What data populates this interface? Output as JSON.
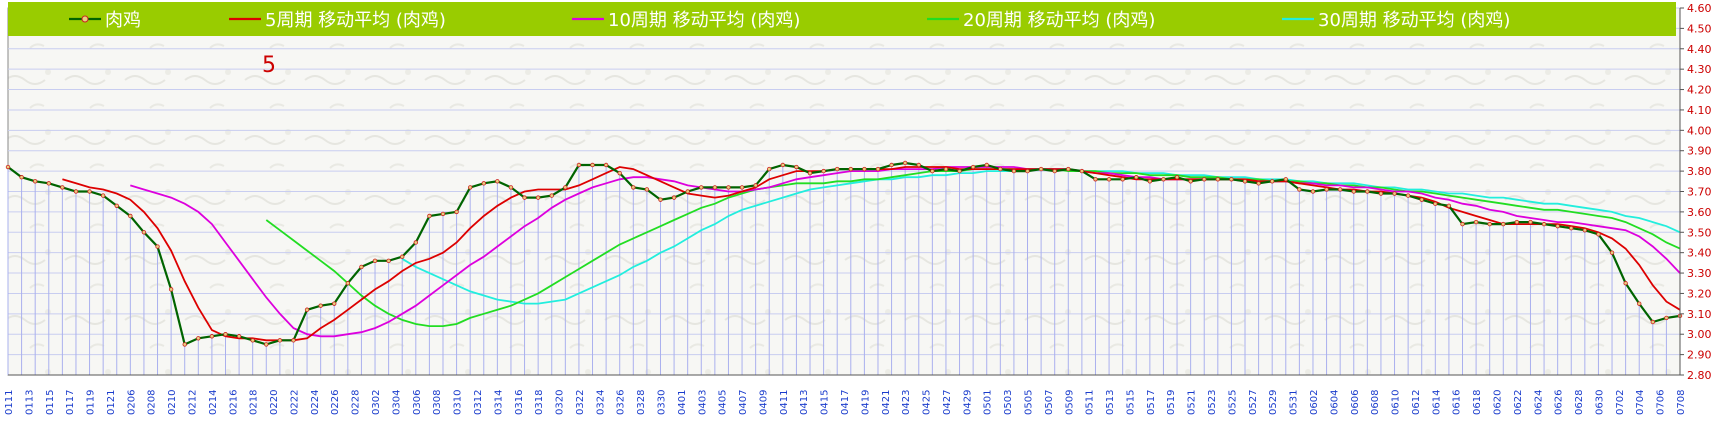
{
  "chart_data": {
    "type": "line",
    "title": "",
    "annotation": "5",
    "xlabel": "",
    "ylabel": "",
    "ylim": [
      2.8,
      4.6
    ],
    "yticks": [
      "2.80",
      "2.90",
      "3.00",
      "3.10",
      "3.20",
      "3.30",
      "3.40",
      "3.50",
      "3.60",
      "3.70",
      "3.80",
      "3.90",
      "4.00",
      "4.10",
      "4.20",
      "4.30",
      "4.40",
      "4.50",
      "4.60"
    ],
    "x_labels": [
      "0111",
      "0113",
      "0115",
      "0117",
      "0119",
      "0121",
      "0206",
      "0208",
      "0210",
      "0212",
      "0214",
      "0216",
      "0218",
      "0220",
      "0222",
      "0224",
      "0226",
      "0228",
      "0302",
      "0304",
      "0306",
      "0308",
      "0310",
      "0312",
      "0314",
      "0316",
      "0318",
      "0320",
      "0322",
      "0324",
      "0326",
      "0328",
      "0330",
      "0401",
      "0403",
      "0405",
      "0407",
      "0409",
      "0411",
      "0413",
      "0415",
      "0417",
      "0419",
      "0421",
      "0423",
      "0425",
      "0427",
      "0429",
      "0501",
      "0503",
      "0505",
      "0507",
      "0509",
      "0511",
      "0513",
      "0515",
      "0517",
      "0519",
      "0521",
      "0523",
      "0525",
      "0527",
      "0529",
      "0531",
      "0602",
      "0604",
      "0606",
      "0608",
      "0610",
      "0612",
      "0614",
      "0616",
      "0618",
      "0620",
      "0622",
      "0624",
      "0626",
      "0628",
      "0630",
      "0702",
      "0704",
      "0706",
      "0708"
    ],
    "legend": [
      {
        "name": "肉鸡",
        "color": "#006400"
      },
      {
        "name": "5周期 移动平均 (肉鸡)",
        "color": "#dd0000"
      },
      {
        "name": "10周期 移动平均 (肉鸡)",
        "color": "#dd00dd"
      },
      {
        "name": "20周期 移动平均 (肉鸡)",
        "color": "#22dd22"
      },
      {
        "name": "30周期 移动平均 (肉鸡)",
        "color": "#22eedd"
      }
    ],
    "series": [
      {
        "name": "肉鸡",
        "values": [
          3.82,
          3.77,
          3.75,
          3.74,
          3.72,
          3.7,
          3.7,
          3.68,
          3.63,
          3.58,
          3.5,
          3.43,
          3.22,
          2.95,
          2.98,
          2.99,
          3.0,
          2.99,
          2.97,
          2.95,
          2.97,
          2.97,
          3.12,
          3.14,
          3.15,
          3.25,
          3.33,
          3.36,
          3.36,
          3.38,
          3.45,
          3.58,
          3.59,
          3.6,
          3.72,
          3.74,
          3.75,
          3.72,
          3.67,
          3.67,
          3.68,
          3.72,
          3.83,
          3.83,
          3.83,
          3.79,
          3.72,
          3.71,
          3.66,
          3.67,
          3.7,
          3.72,
          3.72,
          3.72,
          3.72,
          3.73,
          3.81,
          3.83,
          3.82,
          3.79,
          3.8,
          3.81,
          3.81,
          3.81,
          3.81,
          3.83,
          3.84,
          3.83,
          3.8,
          3.81,
          3.8,
          3.82,
          3.83,
          3.81,
          3.8,
          3.8,
          3.81,
          3.8,
          3.81,
          3.8,
          3.76,
          3.76,
          3.76,
          3.77,
          3.75,
          3.76,
          3.77,
          3.75,
          3.76,
          3.76,
          3.76,
          3.75,
          3.74,
          3.75,
          3.76,
          3.71,
          3.7,
          3.71,
          3.71,
          3.7,
          3.7,
          3.69,
          3.69,
          3.68,
          3.66,
          3.64,
          3.63,
          3.54,
          3.55,
          3.54,
          3.54,
          3.55,
          3.55,
          3.54,
          3.53,
          3.52,
          3.51,
          3.49,
          3.4,
          3.25,
          3.15,
          3.06,
          3.08,
          3.09
        ]
      },
      {
        "name": "5周期 移动平均 (肉鸡)",
        "values": [
          null,
          null,
          null,
          null,
          3.76,
          3.74,
          3.72,
          3.71,
          3.69,
          3.66,
          3.6,
          3.52,
          3.41,
          3.26,
          3.13,
          3.02,
          2.99,
          2.98,
          2.98,
          2.97,
          2.97,
          2.97,
          2.98,
          3.03,
          3.07,
          3.12,
          3.17,
          3.22,
          3.26,
          3.31,
          3.35,
          3.37,
          3.4,
          3.45,
          3.52,
          3.58,
          3.63,
          3.67,
          3.7,
          3.71,
          3.71,
          3.71,
          3.73,
          3.76,
          3.79,
          3.82,
          3.81,
          3.78,
          3.75,
          3.72,
          3.69,
          3.68,
          3.67,
          3.68,
          3.7,
          3.72,
          3.76,
          3.78,
          3.8,
          3.8,
          3.8,
          3.81,
          3.81,
          3.81,
          3.81,
          3.81,
          3.82,
          3.82,
          3.82,
          3.82,
          3.81,
          3.81,
          3.81,
          3.81,
          3.81,
          3.81,
          3.81,
          3.81,
          3.81,
          3.8,
          3.79,
          3.78,
          3.77,
          3.76,
          3.76,
          3.76,
          3.76,
          3.76,
          3.76,
          3.76,
          3.76,
          3.76,
          3.75,
          3.75,
          3.75,
          3.74,
          3.73,
          3.72,
          3.71,
          3.71,
          3.7,
          3.7,
          3.69,
          3.68,
          3.67,
          3.65,
          3.62,
          3.6,
          3.58,
          3.56,
          3.54,
          3.54,
          3.54,
          3.54,
          3.54,
          3.53,
          3.52,
          3.5,
          3.47,
          3.42,
          3.34,
          3.24,
          3.16,
          3.12
        ]
      },
      {
        "name": "10周期 移动平均 (肉鸡)",
        "values": [
          null,
          null,
          null,
          null,
          null,
          null,
          null,
          null,
          null,
          3.73,
          3.71,
          3.69,
          3.67,
          3.64,
          3.6,
          3.54,
          3.45,
          3.36,
          3.27,
          3.18,
          3.1,
          3.03,
          3.0,
          2.99,
          2.99,
          3.0,
          3.01,
          3.03,
          3.06,
          3.1,
          3.14,
          3.19,
          3.24,
          3.29,
          3.34,
          3.38,
          3.43,
          3.48,
          3.53,
          3.57,
          3.62,
          3.66,
          3.69,
          3.72,
          3.74,
          3.76,
          3.77,
          3.77,
          3.76,
          3.75,
          3.73,
          3.72,
          3.71,
          3.7,
          3.7,
          3.71,
          3.72,
          3.74,
          3.76,
          3.77,
          3.78,
          3.79,
          3.8,
          3.8,
          3.8,
          3.81,
          3.81,
          3.81,
          3.81,
          3.82,
          3.82,
          3.82,
          3.82,
          3.82,
          3.82,
          3.81,
          3.81,
          3.81,
          3.81,
          3.8,
          3.79,
          3.79,
          3.78,
          3.77,
          3.77,
          3.76,
          3.76,
          3.76,
          3.76,
          3.76,
          3.76,
          3.75,
          3.75,
          3.75,
          3.75,
          3.74,
          3.74,
          3.73,
          3.73,
          3.72,
          3.72,
          3.71,
          3.7,
          3.7,
          3.69,
          3.67,
          3.66,
          3.64,
          3.63,
          3.61,
          3.6,
          3.58,
          3.57,
          3.56,
          3.55,
          3.55,
          3.54,
          3.53,
          3.52,
          3.51,
          3.48,
          3.43,
          3.37,
          3.3
        ]
      },
      {
        "name": "20周期 移动平均 (肉鸡)",
        "values": [
          null,
          null,
          null,
          null,
          null,
          null,
          null,
          null,
          null,
          null,
          null,
          null,
          null,
          null,
          null,
          null,
          null,
          null,
          null,
          3.56,
          3.51,
          3.46,
          3.41,
          3.36,
          3.31,
          3.25,
          3.19,
          3.14,
          3.1,
          3.07,
          3.05,
          3.04,
          3.04,
          3.05,
          3.08,
          3.1,
          3.12,
          3.14,
          3.17,
          3.2,
          3.24,
          3.28,
          3.32,
          3.36,
          3.4,
          3.44,
          3.47,
          3.5,
          3.53,
          3.56,
          3.59,
          3.62,
          3.64,
          3.67,
          3.69,
          3.71,
          3.72,
          3.73,
          3.74,
          3.74,
          3.74,
          3.75,
          3.75,
          3.76,
          3.76,
          3.77,
          3.78,
          3.79,
          3.8,
          3.8,
          3.8,
          3.81,
          3.81,
          3.81,
          3.81,
          3.81,
          3.81,
          3.81,
          3.8,
          3.8,
          3.8,
          3.79,
          3.79,
          3.79,
          3.78,
          3.78,
          3.78,
          3.77,
          3.77,
          3.77,
          3.76,
          3.76,
          3.76,
          3.75,
          3.75,
          3.75,
          3.74,
          3.74,
          3.73,
          3.73,
          3.72,
          3.72,
          3.71,
          3.7,
          3.7,
          3.69,
          3.68,
          3.67,
          3.66,
          3.65,
          3.64,
          3.63,
          3.62,
          3.61,
          3.61,
          3.6,
          3.59,
          3.58,
          3.57,
          3.55,
          3.52,
          3.49,
          3.45,
          3.42
        ]
      },
      {
        "name": "30周期 移动平均 (肉鸡)",
        "values": [
          null,
          null,
          null,
          null,
          null,
          null,
          null,
          null,
          null,
          null,
          null,
          null,
          null,
          null,
          null,
          null,
          null,
          null,
          null,
          null,
          null,
          null,
          null,
          null,
          null,
          null,
          null,
          null,
          null,
          3.37,
          3.33,
          3.3,
          3.27,
          3.24,
          3.21,
          3.19,
          3.17,
          3.16,
          3.15,
          3.15,
          3.16,
          3.17,
          3.2,
          3.23,
          3.26,
          3.29,
          3.33,
          3.36,
          3.4,
          3.43,
          3.47,
          3.51,
          3.54,
          3.58,
          3.61,
          3.63,
          3.65,
          3.67,
          3.69,
          3.71,
          3.72,
          3.73,
          3.74,
          3.75,
          3.76,
          3.76,
          3.77,
          3.77,
          3.78,
          3.78,
          3.79,
          3.79,
          3.8,
          3.8,
          3.8,
          3.81,
          3.81,
          3.81,
          3.81,
          3.8,
          3.8,
          3.8,
          3.8,
          3.79,
          3.79,
          3.79,
          3.78,
          3.78,
          3.78,
          3.77,
          3.77,
          3.77,
          3.76,
          3.76,
          3.76,
          3.75,
          3.75,
          3.74,
          3.74,
          3.74,
          3.73,
          3.72,
          3.72,
          3.71,
          3.71,
          3.7,
          3.69,
          3.69,
          3.68,
          3.67,
          3.67,
          3.66,
          3.65,
          3.64,
          3.64,
          3.63,
          3.62,
          3.61,
          3.6,
          3.58,
          3.57,
          3.55,
          3.53,
          3.5
        ]
      }
    ]
  }
}
